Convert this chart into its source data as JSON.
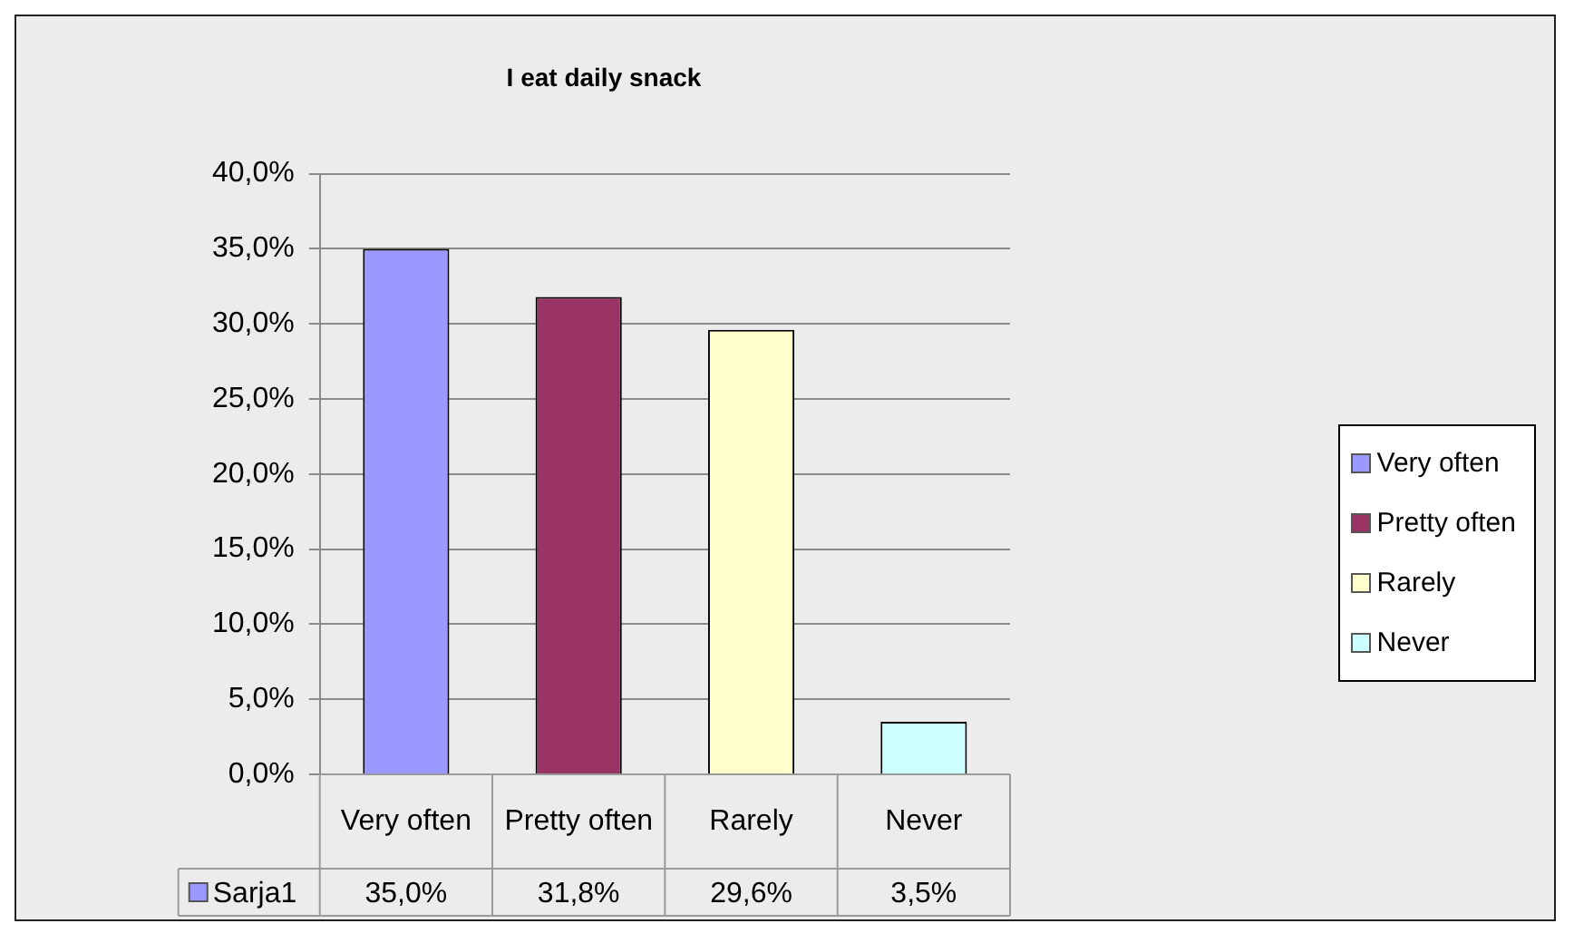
{
  "chart_data": {
    "type": "bar",
    "title": "I eat daily snack",
    "categories": [
      "Very often",
      "Pretty often",
      "Rarely",
      "Never"
    ],
    "series": [
      {
        "name": "Sarja1",
        "color": "#9999ff",
        "colors": [
          "#9999ff",
          "#993366",
          "#ffffcc",
          "#ccffff"
        ],
        "values": [
          35.0,
          31.8,
          29.6,
          3.5
        ],
        "value_labels": [
          "35,0%",
          "31,8%",
          "29,6%",
          "3,5%"
        ]
      }
    ],
    "ylim": [
      0,
      40
    ],
    "yticks": [
      {
        "value": 0,
        "label": "0,0%"
      },
      {
        "value": 5,
        "label": "5,0%"
      },
      {
        "value": 10,
        "label": "10,0%"
      },
      {
        "value": 15,
        "label": "15,0%"
      },
      {
        "value": 20,
        "label": "20,0%"
      },
      {
        "value": 25,
        "label": "25,0%"
      },
      {
        "value": 30,
        "label": "30,0%"
      },
      {
        "value": 35,
        "label": "35,0%"
      },
      {
        "value": 40,
        "label": "40,0%"
      }
    ],
    "grid": "y",
    "legend": "bottom left"
  }
}
